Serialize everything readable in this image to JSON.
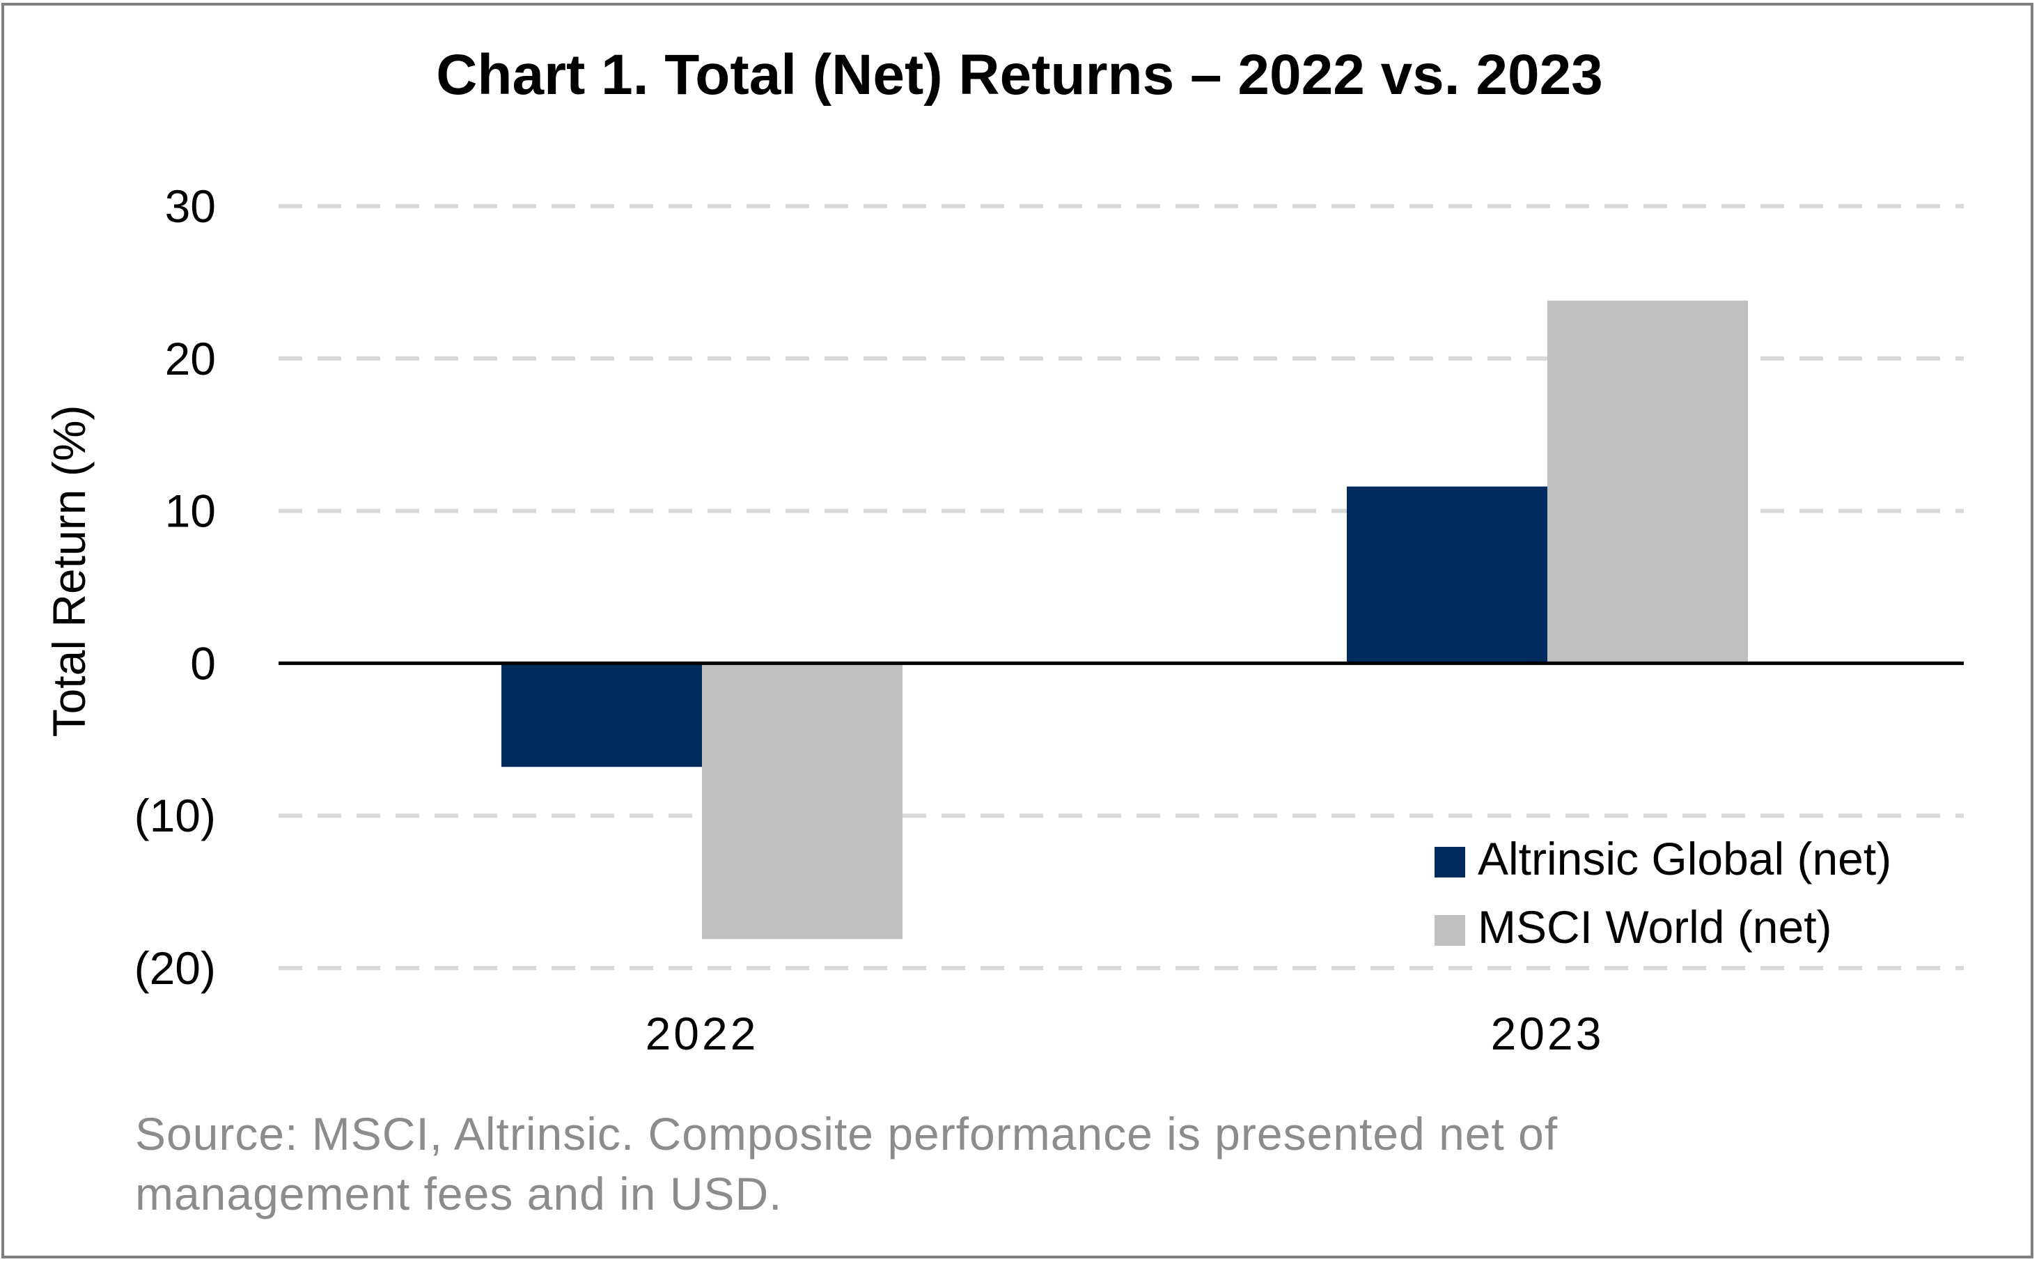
{
  "chart_data": {
    "type": "bar",
    "title": "Chart 1. Total (Net) Returns – 2022 vs. 2023",
    "ylabel": "Total Return (%)",
    "xlabel": "",
    "categories": [
      "2022",
      "2023"
    ],
    "series": [
      {
        "name": "Altrinsic Global (net)",
        "values": [
          -6.8,
          11.6
        ],
        "color": "#002b5f"
      },
      {
        "name": "MSCI World (net)",
        "values": [
          -18.1,
          23.8
        ],
        "color": "#bfbfbf"
      }
    ],
    "ylim": [
      -20,
      30
    ],
    "yticks": [
      30,
      20,
      10,
      0,
      -10,
      -20
    ],
    "ytick_labels": [
      "30",
      "20",
      "10",
      "0",
      "(10)",
      "(20)"
    ],
    "grid": true,
    "legend_position": "bottom-right",
    "colors": {
      "gridline": "#d9d9d9",
      "zero_line": "#000000",
      "source_text": "#8c8c8c",
      "frame": "#7f7f7f"
    }
  },
  "source_note_line1": "Source: MSCI, Altrinsic. Composite performance is presented net of",
  "source_note_line2": "management fees and in USD."
}
